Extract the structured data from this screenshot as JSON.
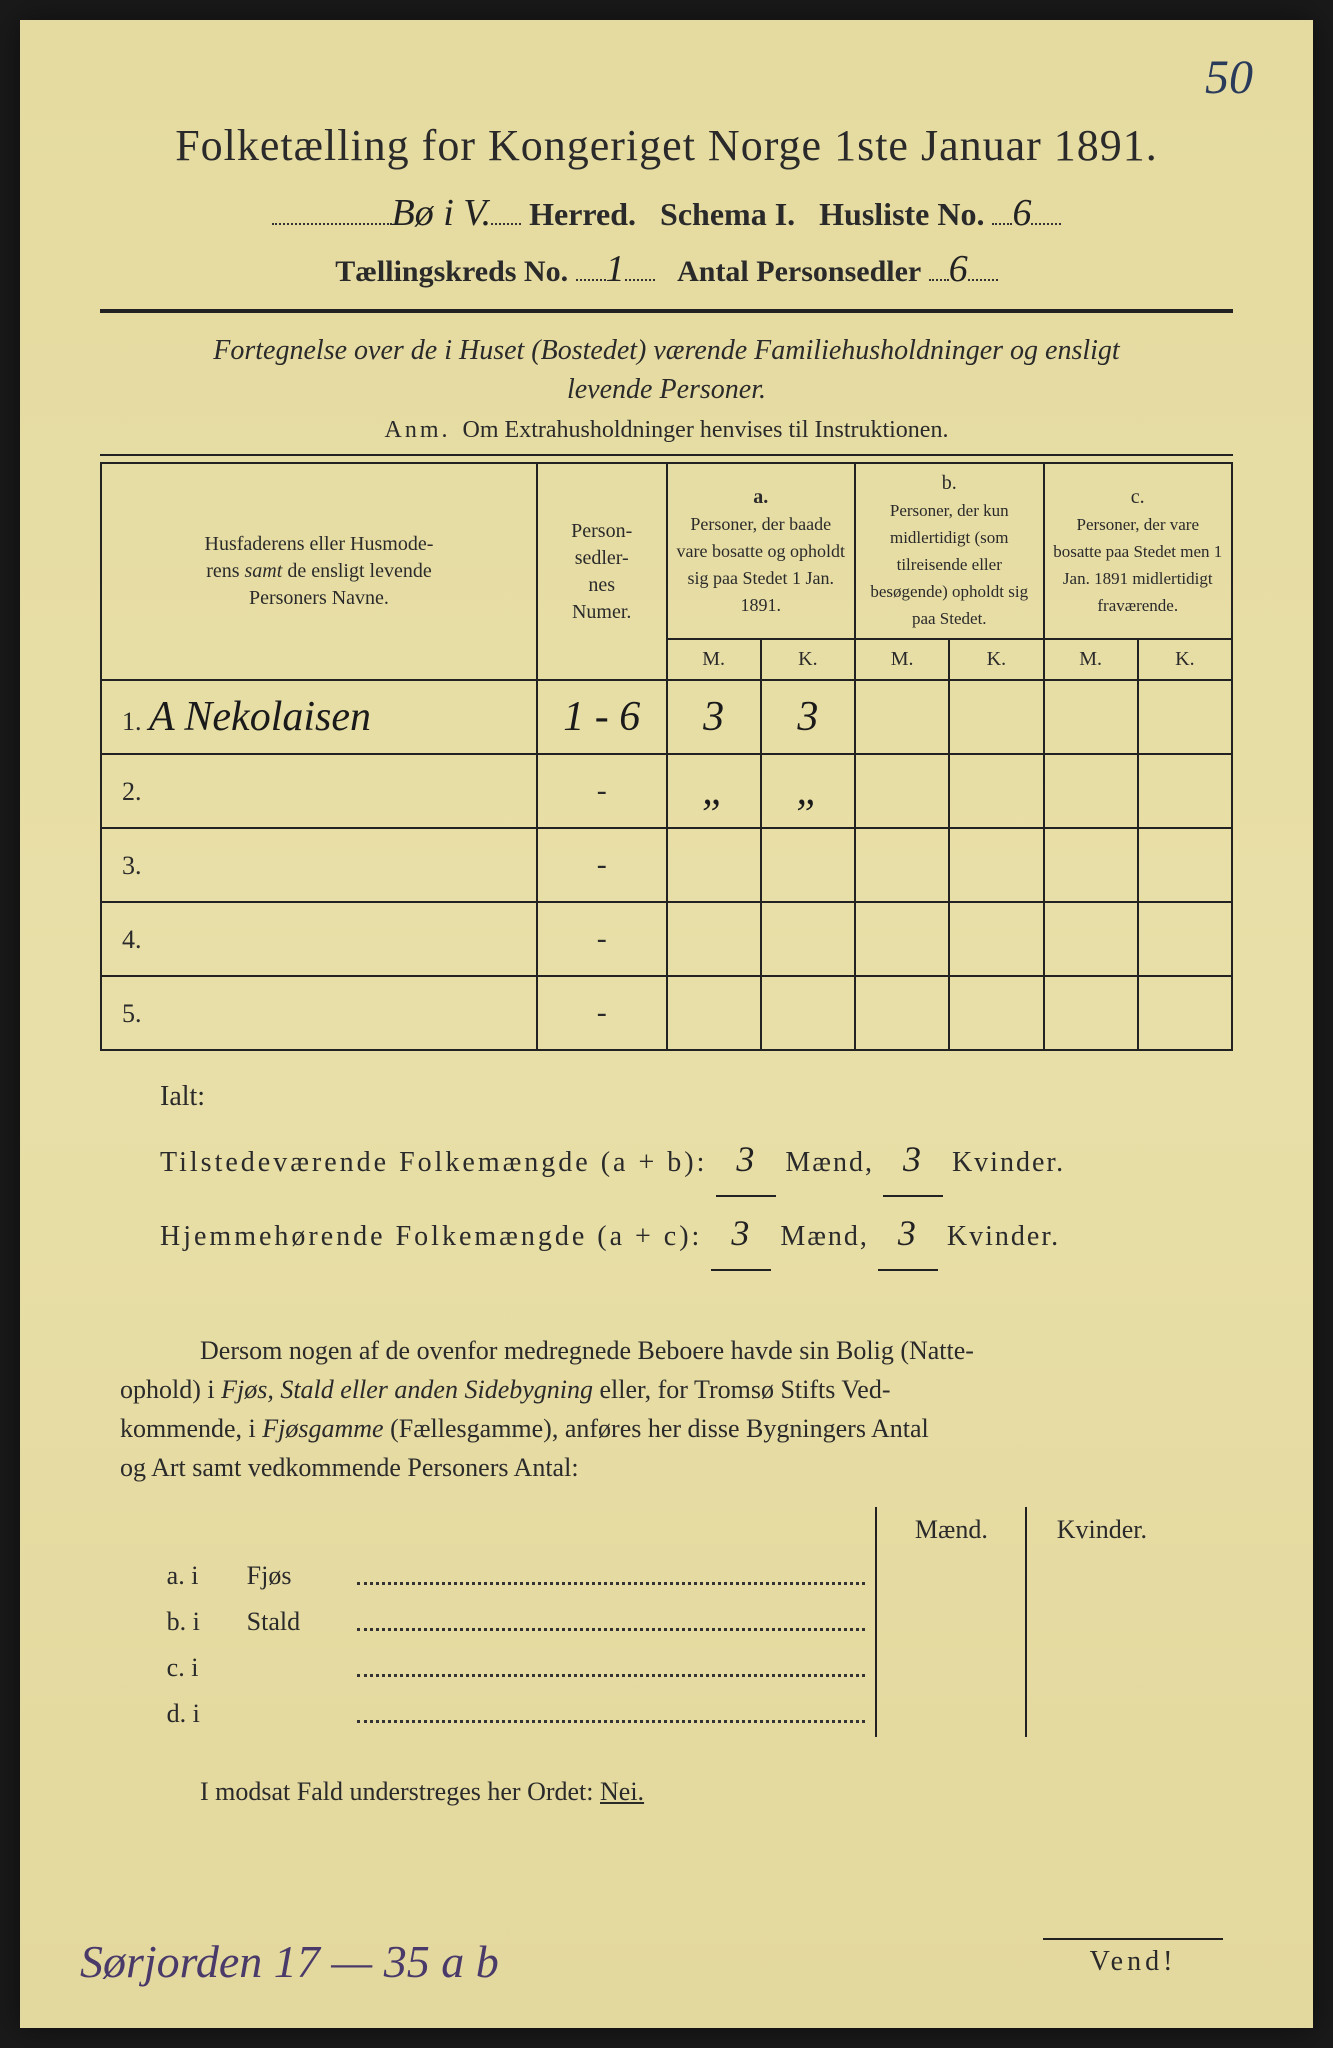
{
  "page_corner_number": "50",
  "title": "Folketælling for Kongeriget Norge 1ste Januar 1891.",
  "header": {
    "herred_handwritten": "Bø i V.",
    "herred_label": "Herred.",
    "schema_label": "Schema I.",
    "husliste_label": "Husliste No.",
    "husliste_no": "6",
    "kreds_label": "Tællingskreds No.",
    "kreds_no": "1",
    "antal_label": "Antal Personsedler",
    "antal_no": "6"
  },
  "fortegnelse_line1": "Fortegnelse over de i Huset (Bostedet) værende Familiehusholdninger og ensligt",
  "fortegnelse_line2": "levende Personer.",
  "anm_label": "Anm.",
  "anm_text": "Om Extrahusholdninger henvises til Instruktionen.",
  "columns": {
    "names_header": "Husfaderens eller Husmoderens samt de ensligt levende Personers Navne.",
    "numer_header": "Personsedlernes Numer.",
    "a_label": "a.",
    "a_text": "Personer, der baade vare bosatte og opholdt sig paa Stedet 1 Jan. 1891.",
    "b_label": "b.",
    "b_text": "Personer, der kun midlertidigt (som tilreisende eller besøgende) opholdt sig paa Stedet.",
    "c_label": "c.",
    "c_text": "Personer, der vare bosatte paa Stedet men 1 Jan. 1891 midlertidigt fraværende.",
    "m": "M.",
    "k": "K."
  },
  "rows": [
    {
      "n": "1.",
      "name": "A Nekolaisen",
      "numer": "1 - 6",
      "a_m": "3",
      "a_k": "3",
      "b_m": "",
      "b_k": "",
      "c_m": "",
      "c_k": ""
    },
    {
      "n": "2.",
      "name": "",
      "numer": "-",
      "a_m": "„",
      "a_k": "„",
      "b_m": "",
      "b_k": "",
      "c_m": "",
      "c_k": ""
    },
    {
      "n": "3.",
      "name": "",
      "numer": "-",
      "a_m": "",
      "a_k": "",
      "b_m": "",
      "b_k": "",
      "c_m": "",
      "c_k": ""
    },
    {
      "n": "4.",
      "name": "",
      "numer": "-",
      "a_m": "",
      "a_k": "",
      "b_m": "",
      "b_k": "",
      "c_m": "",
      "c_k": ""
    },
    {
      "n": "5.",
      "name": "",
      "numer": "-",
      "a_m": "",
      "a_k": "",
      "b_m": "",
      "b_k": "",
      "c_m": "",
      "c_k": ""
    }
  ],
  "ialt_label": "Ialt:",
  "totals": {
    "tilstede_label": "Tilstedeværende Folkemængde (a + b):",
    "hjemme_label": "Hjemmehørende Folkemængde (a + c):",
    "maend_label": "Mænd,",
    "kvinder_label": "Kvinder.",
    "tilstede_m": "3",
    "tilstede_k": "3",
    "hjemme_m": "3",
    "hjemme_k": "3"
  },
  "dersom": "Dersom nogen af de ovenfor medregnede Beboere havde sin Bolig (Natteophold) i Fjøs, Stald eller anden Sidebygning eller, for Tromsø Stifts Vedkommende, i Fjøsgamme (Fællesgamme), anføres her disse Bygningers Antal og Art samt vedkommende Personers Antal:",
  "bygning": {
    "maend": "Mænd.",
    "kvinder": "Kvinder.",
    "rows": [
      {
        "label": "a.  i",
        "type": "Fjøs"
      },
      {
        "label": "b.  i",
        "type": "Stald"
      },
      {
        "label": "c.  i",
        "type": ""
      },
      {
        "label": "d.  i",
        "type": ""
      }
    ]
  },
  "modsat": "I modsat Fald understreges her Ordet:",
  "nei": "Nei.",
  "bottom_handwriting": "Sørjorden 17 — 35 a b",
  "vend": "Vend!",
  "colors": {
    "paper": "#e8dfa8",
    "ink": "#2a2a2a",
    "handwriting": "#4a3a6a",
    "corner_number": "#2a3a5a"
  }
}
